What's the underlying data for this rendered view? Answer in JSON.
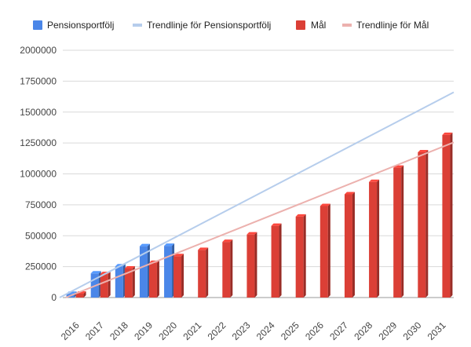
{
  "chart_data": {
    "type": "bar",
    "categories": [
      "2016",
      "2017",
      "2018",
      "2019",
      "2020",
      "2021",
      "2022",
      "2023",
      "2024",
      "2025",
      "2026",
      "2027",
      "2028",
      "2029",
      "2030",
      "2031"
    ],
    "series": [
      {
        "name": "Pensionsportfölj",
        "color": "#4a86e8",
        "values": [
          30000,
          195000,
          252000,
          415000,
          418000,
          null,
          null,
          null,
          null,
          null,
          null,
          null,
          null,
          null,
          null,
          null
        ]
      },
      {
        "name": "Mål",
        "color": "#db3f36",
        "values": [
          32000,
          190000,
          235000,
          280000,
          335000,
          385000,
          450000,
          510000,
          580000,
          655000,
          740000,
          835000,
          935000,
          1050000,
          1175000,
          1315000
        ]
      }
    ],
    "trendlines": [
      {
        "name": "Trendlinje för Pensionsportfölj",
        "color": "#b6cdec",
        "start": 0,
        "end": 1660000
      },
      {
        "name": "Trendlinje för Mål",
        "color": "#ecb1ae",
        "start": -20000,
        "end": 1255000
      }
    ],
    "yticks": [
      "0",
      "250000",
      "500000",
      "750000",
      "1000000",
      "1250000",
      "1500000",
      "1750000",
      "2000000"
    ],
    "ylim": [
      0,
      2000000
    ],
    "grid": true,
    "legend_position": "top",
    "xlabel": "",
    "ylabel": ""
  }
}
